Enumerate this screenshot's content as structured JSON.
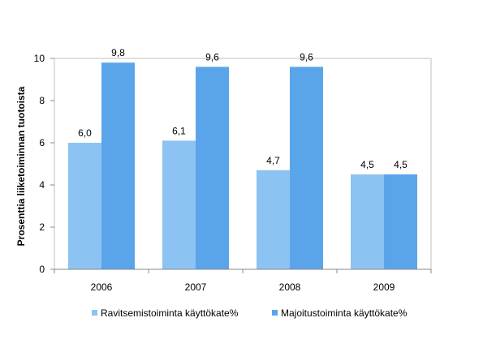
{
  "chart_data": {
    "type": "bar",
    "title": "",
    "xlabel": "",
    "ylabel": "Prosenttia liiketoiminnan tuotoista",
    "categories": [
      "2006",
      "2007",
      "2008",
      "2009"
    ],
    "series": [
      {
        "name": "Ravitsemistoiminta käyttökate%",
        "values": [
          6.0,
          6.1,
          4.7,
          4.5
        ],
        "labels": [
          "6,0",
          "6,1",
          "4,7",
          "4,5"
        ],
        "color": "#8CC3F3"
      },
      {
        "name": "Majoitustoiminta käyttökate%",
        "values": [
          9.8,
          9.6,
          9.6,
          4.5
        ],
        "labels": [
          "9,8",
          "9,6",
          "9,6",
          "4,5"
        ],
        "color": "#5AA5EA"
      }
    ],
    "ylim": [
      0,
      10
    ],
    "yticks": [
      0,
      2,
      4,
      6,
      8,
      10
    ],
    "grid": false,
    "legend_position": "bottom"
  }
}
